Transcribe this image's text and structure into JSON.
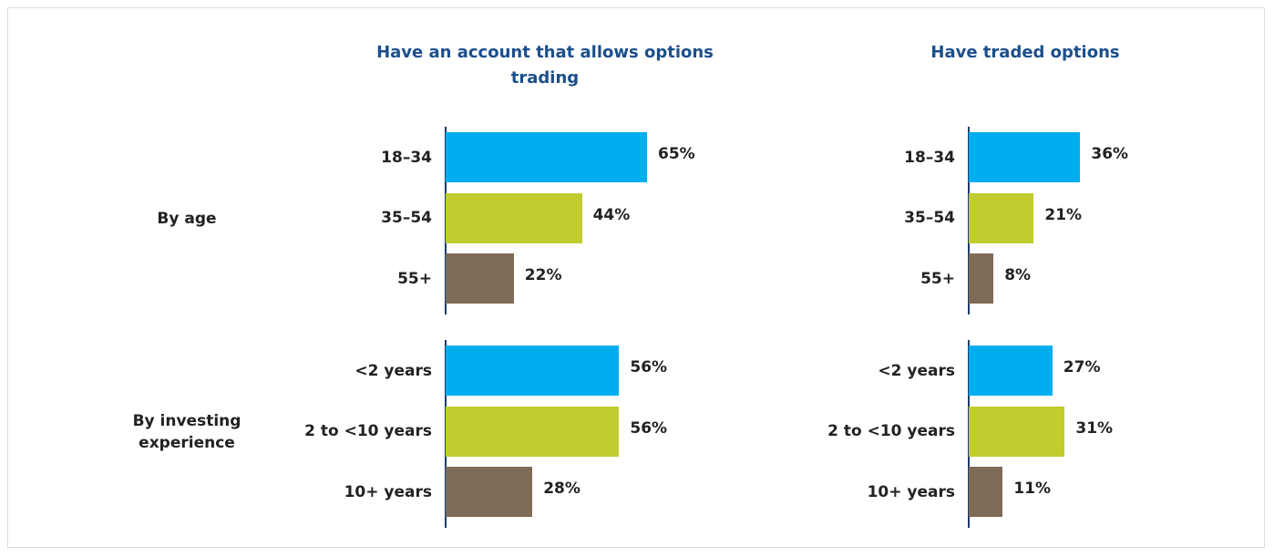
{
  "row_groups": [
    "By age",
    "By investing experience"
  ],
  "colors": [
    "#00aeef",
    "#c1cc2e",
    "#7f6b55"
  ],
  "chart_data": [
    {
      "type": "bar",
      "orientation": "horizontal",
      "title": "Have an account that allows options trading",
      "categories": [
        "18–34",
        "35–54",
        "55+",
        "<2 years",
        "2 to <10 years",
        "10+ years"
      ],
      "values": [
        65,
        44,
        22,
        56,
        56,
        28
      ],
      "value_labels": [
        "65%",
        "44%",
        "22%",
        "56%",
        "56%",
        "28%"
      ]
    },
    {
      "type": "bar",
      "orientation": "horizontal",
      "title": "Have traded options",
      "categories": [
        "18–34",
        "35–54",
        "55+",
        "<2 years",
        "2 to <10 years",
        "10+ years"
      ],
      "values": [
        36,
        21,
        8,
        27,
        31,
        11
      ],
      "value_labels": [
        "36%",
        "21%",
        "8%",
        "27%",
        "31%",
        "11%"
      ]
    }
  ]
}
